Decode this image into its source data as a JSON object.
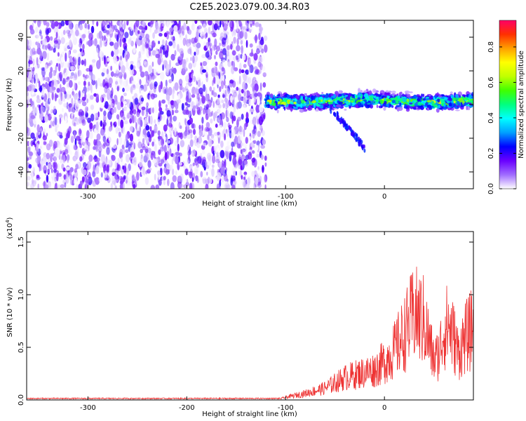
{
  "title": "C2E5.2023.079.00.34.R03",
  "chart_data": [
    {
      "type": "heatmap",
      "xlabel": "Height of straight line (km)",
      "ylabel": "Frequency (Hz)",
      "xlim": [
        -362,
        90
      ],
      "ylim": [
        -50,
        50
      ],
      "xticks": [
        -300,
        -200,
        -100,
        0
      ],
      "yticks": [
        -40,
        -20,
        0,
        20,
        40
      ],
      "regions": [
        {
          "name": "noise",
          "x": [
            -362,
            -120
          ],
          "y": [
            -50,
            50
          ],
          "level": 0.1
        },
        {
          "name": "echo",
          "x": [
            -120,
            90
          ],
          "center_y": 0,
          "level": 0.6
        }
      ],
      "colorbar": {
        "label": "Normalized spectral amplitude",
        "range": [
          0.0,
          0.95
        ],
        "ticks": [
          "0.0",
          "0.2",
          "0.4",
          "0.6",
          "0.8"
        ],
        "colors": [
          "#ffffff",
          "#a06cff",
          "#6a00ff",
          "#0000ff",
          "#00a0ff",
          "#00ffff",
          "#00ff80",
          "#40ff00",
          "#c0ff00",
          "#ffff00",
          "#ffa000",
          "#ff3000",
          "#ff0066"
        ]
      }
    },
    {
      "type": "line",
      "xlabel": "Height of straight line (km)",
      "ylabel": "SNR (10 * v/v)",
      "yexponent": "(x10",
      "yexponent_power": "4",
      "yexponent_close": ")",
      "xlim": [
        -362,
        90
      ],
      "ylim": [
        0.0,
        1.6
      ],
      "xticks": [
        -300,
        -200,
        -100,
        0
      ],
      "yticks": [
        "0.0",
        "0.5",
        "1.0",
        "1.5"
      ],
      "color": "#ee3333",
      "envelope": {
        "x": [
          -362,
          -110,
          -100,
          -80,
          -60,
          -40,
          -20,
          -10,
          0,
          10,
          20,
          30,
          40,
          50,
          55,
          60,
          65,
          70,
          75,
          80,
          90
        ],
        "y": [
          0.0,
          0.0,
          0.04,
          0.1,
          0.18,
          0.34,
          0.42,
          0.46,
          0.58,
          0.75,
          1.0,
          1.3,
          1.2,
          0.6,
          0.7,
          1.05,
          1.15,
          0.95,
          0.7,
          0.9,
          1.1
        ]
      }
    }
  ]
}
